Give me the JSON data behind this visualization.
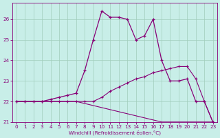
{
  "background_color": "#c8eee8",
  "line_color": "#880077",
  "grid_color": "#a0ccbb",
  "xlabel": "Windchill (Refroidissement éolien,°C)",
  "hours": [
    0,
    1,
    2,
    3,
    4,
    5,
    6,
    7,
    8,
    9,
    10,
    11,
    12,
    13,
    14,
    15,
    16,
    17,
    18,
    19,
    20,
    21,
    22,
    23
  ],
  "temp": [
    22,
    22,
    22,
    22,
    22.1,
    22.2,
    22.3,
    22.4,
    23.5,
    25.0,
    26.4,
    26.1,
    26.1,
    26.0,
    25.0,
    25.2,
    26.0,
    24.0,
    23.0,
    23.0,
    23.1,
    22.0,
    22.0,
    21.0
  ],
  "windchill": [
    22,
    22,
    22,
    22,
    22,
    22,
    22,
    22,
    22,
    22,
    22.2,
    22.5,
    22.7,
    22.9,
    23.1,
    23.2,
    23.4,
    23.5,
    23.6,
    23.7,
    23.7,
    23.1,
    22.0,
    21.0
  ],
  "temp_min": [
    22,
    22,
    22,
    22,
    22,
    22,
    22,
    22,
    21.9,
    21.8,
    21.7,
    21.6,
    21.5,
    21.4,
    21.3,
    21.2,
    21.1,
    21.0,
    21.0,
    21.0,
    21.0,
    21.0,
    21.0,
    21.0
  ],
  "ylim": [
    21,
    26.8
  ],
  "xlim": [
    -0.5,
    23.5
  ],
  "yticks": [
    21,
    22,
    23,
    24,
    25,
    26
  ],
  "xticks": [
    0,
    1,
    2,
    3,
    4,
    5,
    6,
    7,
    8,
    9,
    10,
    11,
    12,
    13,
    14,
    15,
    16,
    17,
    18,
    19,
    20,
    21,
    22,
    23
  ]
}
